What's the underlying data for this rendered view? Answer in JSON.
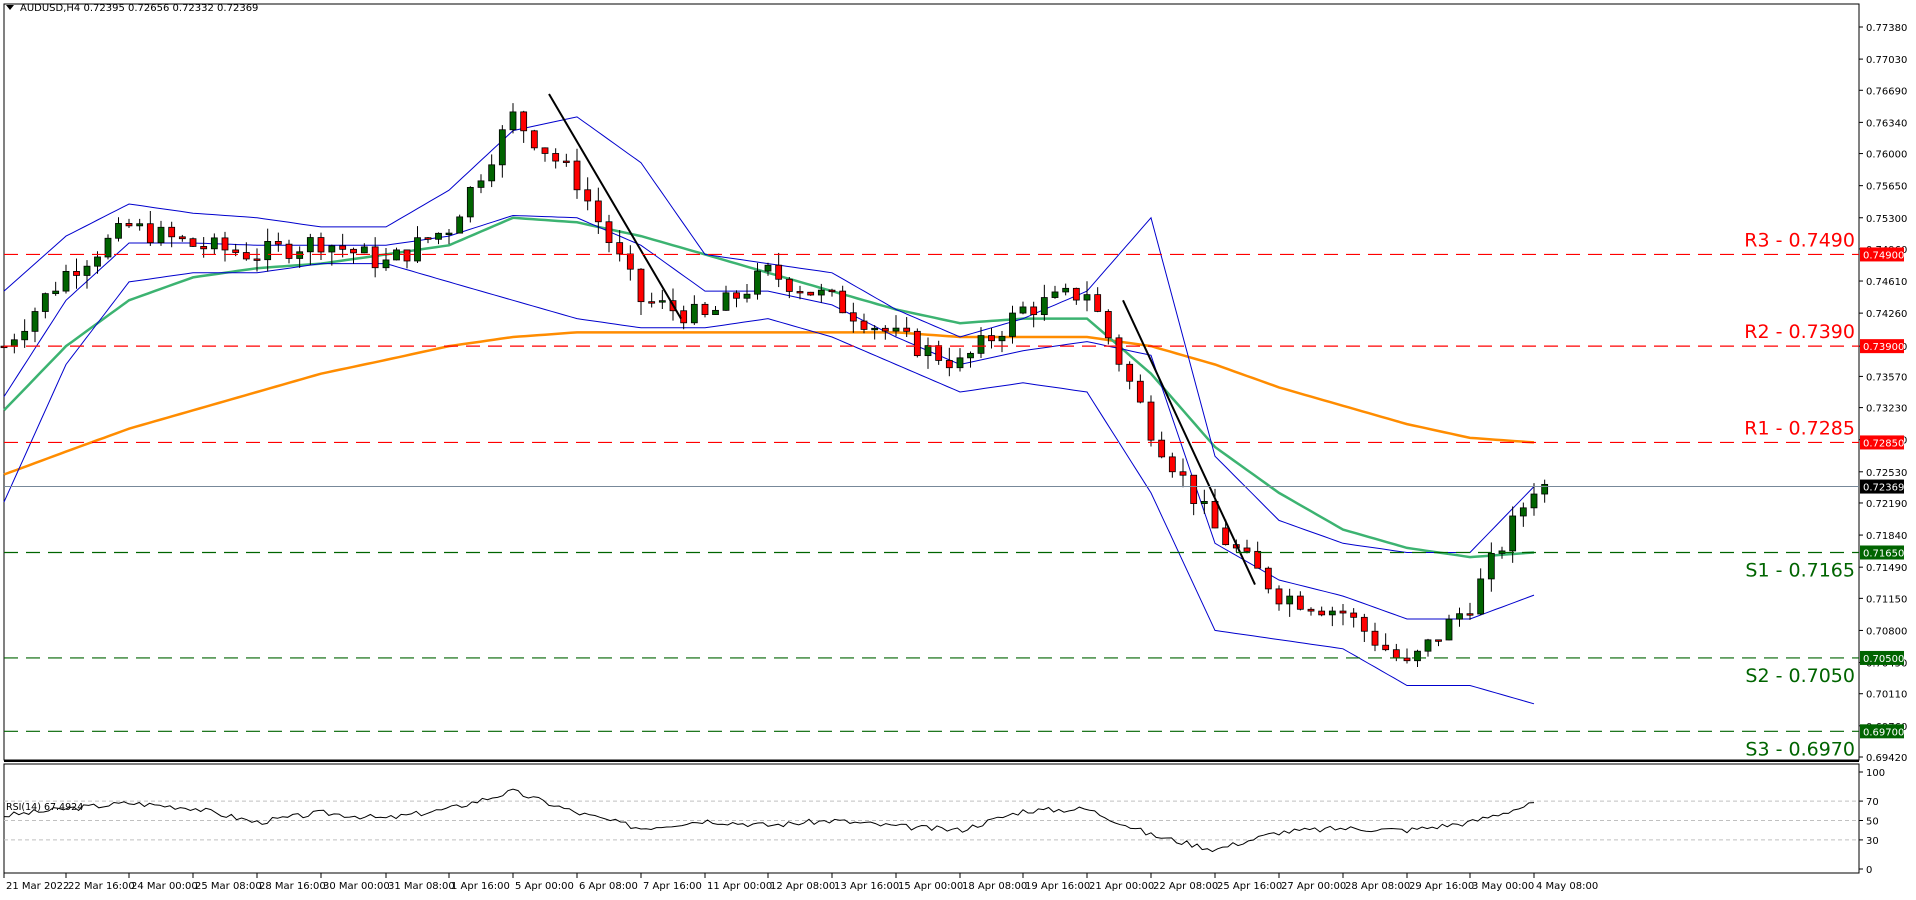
{
  "header": {
    "symbol": "AUDUSD,H4",
    "ohlc": "0.72395 0.72656 0.72332 0.72369",
    "title": "AUDUSD,H4  0.72395 0.72656 0.72332 0.72369"
  },
  "rsi": {
    "label": "RSI(14) 67.4924",
    "period": 14,
    "value": 67.4924,
    "levels": [
      70,
      50,
      30
    ],
    "axis_ticks": [
      "100",
      "70",
      "50",
      "30",
      "0"
    ]
  },
  "price_axis": {
    "ticks": [
      "0.77380",
      "0.77030",
      "0.76690",
      "0.76340",
      "0.76000",
      "0.75650",
      "0.75300",
      "0.74960",
      "0.74610",
      "0.74260",
      "0.73900",
      "0.73570",
      "0.73230",
      "0.72880",
      "0.72530",
      "0.72190",
      "0.71840",
      "0.71490",
      "0.71150",
      "0.70800",
      "0.70450",
      "0.70110",
      "0.69760",
      "0.69420"
    ],
    "current_price": "0.72369"
  },
  "levels": [
    {
      "name": "R3",
      "label": "R3 - 0.7490",
      "value": 0.749,
      "tag": "0.74900",
      "color": "#ff0000",
      "type": "resistance"
    },
    {
      "name": "R2",
      "label": "R2 - 0.7390",
      "value": 0.739,
      "tag": "0.73900",
      "color": "#ff0000",
      "type": "resistance"
    },
    {
      "name": "R1",
      "label": "R1 - 0.7285",
      "value": 0.7285,
      "tag": "0.72850",
      "color": "#ff0000",
      "type": "resistance"
    },
    {
      "name": "S1",
      "label": "S1 - 0.7165",
      "value": 0.7165,
      "tag": "0.71650",
      "color": "#006400",
      "type": "support"
    },
    {
      "name": "S2",
      "label": "S2 - 0.7050",
      "value": 0.705,
      "tag": "0.70500",
      "color": "#006400",
      "type": "support"
    },
    {
      "name": "S3",
      "label": "S3 - 0.6970",
      "value": 0.697,
      "tag": "0.69700",
      "color": "#006400",
      "type": "support"
    }
  ],
  "time_axis": {
    "ticks": [
      "21 Mar 2022",
      "22 Mar 16:00",
      "24 Mar 00:00",
      "25 Mar 08:00",
      "28 Mar 16:00",
      "30 Mar 00:00",
      "31 Mar 08:00",
      "1 Apr 16:00",
      "5 Apr 00:00",
      "6 Apr 08:00",
      "7 Apr 16:00",
      "11 Apr 00:00",
      "12 Apr 08:00",
      "13 Apr 16:00",
      "15 Apr 00:00",
      "18 Apr 08:00",
      "19 Apr 16:00",
      "21 Apr 00:00",
      "22 Apr 08:00",
      "25 Apr 16:00",
      "27 Apr 00:00",
      "28 Apr 08:00",
      "29 Apr 16:00",
      "3 May 00:00",
      "4 May 08:00"
    ]
  },
  "colors": {
    "bull": "#006400",
    "bear": "#ff0000",
    "bollinger": "#0000cd",
    "ma_fast": "#3cb371",
    "ma_slow": "#ff8c00",
    "resistance": "#ff0000",
    "support": "#006400",
    "current_price_line": "#778899",
    "trendline": "#000000"
  },
  "chart_data": {
    "type": "candlestick",
    "title": "AUDUSD,H4",
    "subtitle": "O 0.72395 H 0.72656 L 0.72332 C 0.72369",
    "xlabel": "",
    "ylabel": "",
    "ylim": [
      0.6935,
      0.776
    ],
    "grid": false,
    "legend": "none",
    "x_range": [
      "21 Mar 2022",
      "4 May 2022 H4"
    ],
    "series": [
      {
        "name": "Price (approx. closes along time ticks)",
        "categories": [
          "21 Mar 2022",
          "22 Mar 16:00",
          "24 Mar 00:00",
          "25 Mar 08:00",
          "28 Mar 16:00",
          "30 Mar 00:00",
          "31 Mar 08:00",
          "1 Apr 16:00",
          "5 Apr 00:00",
          "6 Apr 08:00",
          "7 Apr 16:00",
          "11 Apr 00:00",
          "12 Apr 08:00",
          "13 Apr 16:00",
          "15 Apr 00:00",
          "18 Apr 08:00",
          "19 Apr 16:00",
          "21 Apr 00:00",
          "22 Apr 08:00",
          "25 Apr 16:00",
          "27 Apr 00:00",
          "28 Apr 08:00",
          "29 Apr 16:00",
          "3 May 00:00",
          "4 May 08:00"
        ],
        "values": [
          0.739,
          0.747,
          0.752,
          0.75,
          0.749,
          0.7505,
          0.748,
          0.752,
          0.764,
          0.757,
          0.744,
          0.742,
          0.747,
          0.744,
          0.74,
          0.737,
          0.743,
          0.745,
          0.73,
          0.719,
          0.712,
          0.71,
          0.704,
          0.711,
          0.7237
        ]
      },
      {
        "name": "Upper Bollinger (approx.)",
        "values": [
          0.745,
          0.751,
          0.7545,
          0.7535,
          0.753,
          0.752,
          0.752,
          0.756,
          0.7625,
          0.764,
          0.759,
          0.749,
          0.748,
          0.747,
          0.743,
          0.74,
          0.742,
          0.745,
          0.753,
          0.727,
          0.72,
          0.7175,
          0.7165,
          0.7165,
          0.7237
        ]
      },
      {
        "name": "Lower Bollinger (approx.)",
        "values": [
          0.722,
          0.737,
          0.746,
          0.747,
          0.747,
          0.748,
          0.748,
          0.746,
          0.744,
          0.742,
          0.741,
          0.741,
          0.742,
          0.74,
          0.737,
          0.734,
          0.735,
          0.734,
          0.723,
          0.708,
          0.707,
          0.706,
          0.702,
          0.702,
          0.7
        ]
      },
      {
        "name": "MA fast (green, approx.)",
        "values": [
          0.732,
          0.739,
          0.744,
          0.7465,
          0.7475,
          0.748,
          0.749,
          0.75,
          0.753,
          0.7525,
          0.751,
          0.749,
          0.747,
          0.745,
          0.743,
          0.7415,
          0.742,
          0.742,
          0.736,
          0.728,
          0.723,
          0.719,
          0.717,
          0.716,
          0.7165
        ]
      },
      {
        "name": "MA slow (orange, approx.)",
        "values": [
          0.725,
          0.7275,
          0.73,
          0.732,
          0.734,
          0.736,
          0.7375,
          0.739,
          0.74,
          0.7405,
          0.7405,
          0.7405,
          0.7405,
          0.7405,
          0.7405,
          0.74,
          0.74,
          0.74,
          0.739,
          0.737,
          0.7345,
          0.7325,
          0.7305,
          0.729,
          0.7285
        ]
      },
      {
        "name": "RSI(14) (approx.)",
        "values": [
          55,
          62,
          68,
          63,
          48,
          58,
          52,
          62,
          80,
          58,
          42,
          50,
          45,
          50,
          44,
          40,
          60,
          62,
          35,
          20,
          38,
          42,
          40,
          48,
          67.49
        ]
      }
    ],
    "horizontal_levels": [
      {
        "label": "R3 - 0.7490",
        "value": 0.749
      },
      {
        "label": "R2 - 0.7390",
        "value": 0.739
      },
      {
        "label": "R1 - 0.7285",
        "value": 0.7285
      },
      {
        "label": "S1 - 0.7165",
        "value": 0.7165
      },
      {
        "label": "S2 - 0.7050",
        "value": 0.705
      },
      {
        "label": "S3 - 0.6970",
        "value": 0.697
      }
    ],
    "trendlines": [
      {
        "from": [
          "5 Apr 00:00",
          0.7665
        ],
        "to": [
          "7 Apr 16:00",
          0.742
        ]
      },
      {
        "from": [
          "21 Apr 00:00",
          0.744
        ],
        "to": [
          "25 Apr 16:00",
          0.713
        ]
      }
    ],
    "current_price": 0.72369
  }
}
